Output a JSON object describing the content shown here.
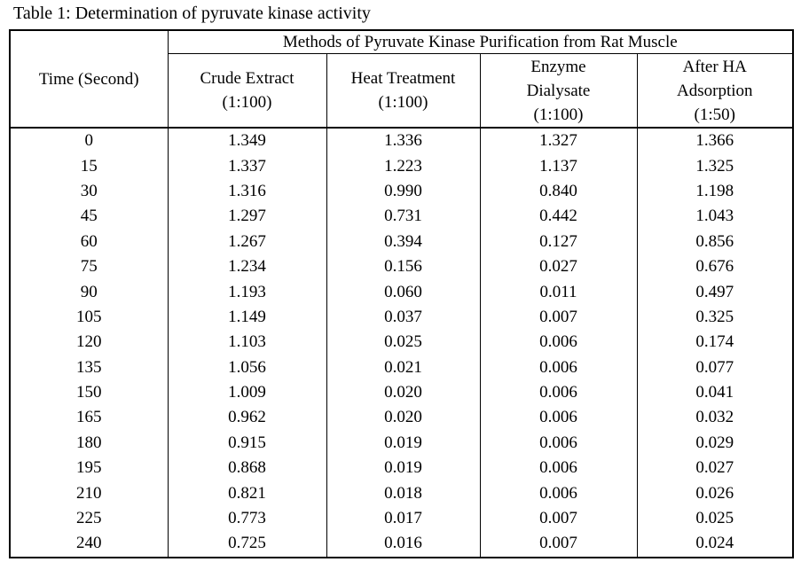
{
  "title": "Table 1: Determination of pyruvate kinase activity",
  "table": {
    "group_header": "Methods of Pyruvate Kinase Purification from Rat Muscle",
    "time_header": "Time (Second)",
    "method_columns": [
      {
        "lines": [
          "Crude Extract",
          "(1:100)"
        ]
      },
      {
        "lines": [
          "Heat Treatment",
          "(1:100)"
        ]
      },
      {
        "lines": [
          "Enzyme",
          "Dialysate",
          "(1:100)"
        ]
      },
      {
        "lines": [
          "After HA",
          "Adsorption",
          "(1:50)"
        ]
      }
    ],
    "rows": [
      {
        "time": "0",
        "values": [
          "1.349",
          "1.336",
          "1.327",
          "1.366"
        ]
      },
      {
        "time": "15",
        "values": [
          "1.337",
          "1.223",
          "1.137",
          "1.325"
        ]
      },
      {
        "time": "30",
        "values": [
          "1.316",
          "0.990",
          "0.840",
          "1.198"
        ]
      },
      {
        "time": "45",
        "values": [
          "1.297",
          "0.731",
          "0.442",
          "1.043"
        ]
      },
      {
        "time": "60",
        "values": [
          "1.267",
          "0.394",
          "0.127",
          "0.856"
        ]
      },
      {
        "time": "75",
        "values": [
          "1.234",
          "0.156",
          "0.027",
          "0.676"
        ]
      },
      {
        "time": "90",
        "values": [
          "1.193",
          "0.060",
          "0.011",
          "0.497"
        ]
      },
      {
        "time": "105",
        "values": [
          "1.149",
          "0.037",
          "0.007",
          "0.325"
        ]
      },
      {
        "time": "120",
        "values": [
          "1.103",
          "0.025",
          "0.006",
          "0.174"
        ]
      },
      {
        "time": "135",
        "values": [
          "1.056",
          "0.021",
          "0.006",
          "0.077"
        ]
      },
      {
        "time": "150",
        "values": [
          "1.009",
          "0.020",
          "0.006",
          "0.041"
        ]
      },
      {
        "time": "165",
        "values": [
          "0.962",
          "0.020",
          "0.006",
          "0.032"
        ]
      },
      {
        "time": "180",
        "values": [
          "0.915",
          "0.019",
          "0.006",
          "0.029"
        ]
      },
      {
        "time": "195",
        "values": [
          "0.868",
          "0.019",
          "0.006",
          "0.027"
        ]
      },
      {
        "time": "210",
        "values": [
          "0.821",
          "0.018",
          "0.006",
          "0.026"
        ]
      },
      {
        "time": "225",
        "values": [
          "0.773",
          "0.017",
          "0.007",
          "0.025"
        ]
      },
      {
        "time": "240",
        "values": [
          "0.725",
          "0.016",
          "0.007",
          "0.024"
        ]
      }
    ],
    "colors": {
      "text": "#000000",
      "background": "#ffffff",
      "border": "#000000"
    }
  }
}
